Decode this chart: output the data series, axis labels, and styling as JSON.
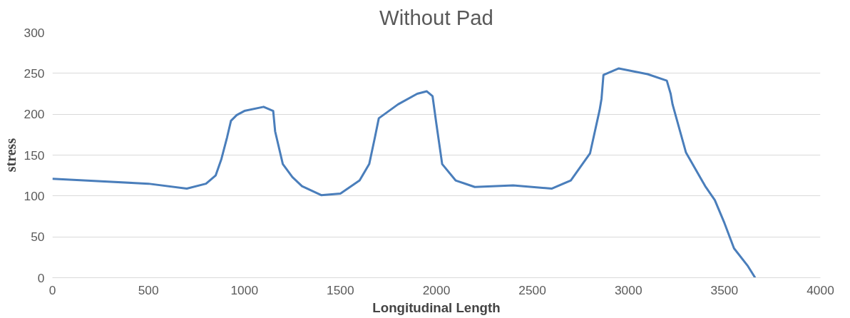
{
  "chart_data": {
    "type": "line",
    "title": "Without Pad",
    "xlabel": "Longitudinal Length",
    "ylabel": "stress",
    "x": [
      0,
      500,
      700,
      800,
      850,
      880,
      910,
      930,
      960,
      1000,
      1100,
      1150,
      1160,
      1200,
      1250,
      1300,
      1400,
      1500,
      1600,
      1650,
      1680,
      1700,
      1800,
      1900,
      1950,
      1980,
      2000,
      2030,
      2100,
      2200,
      2400,
      2600,
      2700,
      2800,
      2850,
      2860,
      2870,
      2950,
      3100,
      3200,
      3220,
      3230,
      3300,
      3400,
      3450,
      3500,
      3550,
      3620,
      3660
    ],
    "series": [
      {
        "color": "#4a7ebb",
        "values": [
          121,
          115,
          109,
          115,
          125,
          145,
          172,
          192,
          199,
          204,
          209,
          204,
          179,
          139,
          123,
          112,
          101,
          103,
          119,
          139,
          172,
          195,
          212,
          225,
          228,
          222,
          188,
          139,
          119,
          111,
          113,
          109,
          119,
          152,
          205,
          219,
          248,
          256,
          249,
          241,
          225,
          212,
          153,
          112,
          95,
          67,
          36,
          15,
          0
        ]
      }
    ],
    "xlim": [
      0,
      4000
    ],
    "xticks": [
      0,
      500,
      1000,
      1500,
      2000,
      2500,
      3000,
      3500,
      4000
    ],
    "ylim": [
      0,
      300
    ],
    "yticks": [
      0,
      50,
      100,
      150,
      200,
      250,
      300
    ],
    "grid": "y",
    "marker": "none",
    "line_style": "solid"
  }
}
